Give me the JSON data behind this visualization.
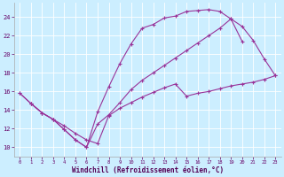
{
  "xlabel": "Windchill (Refroidissement éolien,°C)",
  "background_color": "#cceeff",
  "grid_color": "#ffffff",
  "line_color": "#993399",
  "xlim": [
    -0.5,
    23.5
  ],
  "ylim": [
    9.0,
    25.5
  ],
  "yticks": [
    10,
    12,
    14,
    16,
    18,
    20,
    22,
    24
  ],
  "xticks": [
    0,
    1,
    2,
    3,
    4,
    5,
    6,
    7,
    8,
    9,
    10,
    11,
    12,
    13,
    14,
    15,
    16,
    17,
    18,
    19,
    20,
    21,
    22,
    23
  ],
  "line1_x": [
    0,
    1,
    2,
    3,
    4,
    5,
    6,
    7,
    8,
    9,
    10,
    11,
    12,
    13,
    14,
    15,
    16,
    17,
    18,
    19,
    20
  ],
  "line1_y": [
    15.8,
    14.7,
    13.7,
    13.0,
    11.9,
    10.8,
    10.0,
    13.8,
    16.5,
    19.0,
    21.1,
    22.8,
    23.2,
    23.9,
    24.1,
    24.6,
    24.7,
    24.8,
    24.6,
    23.8,
    21.4
  ],
  "line2_x": [
    0,
    1,
    2,
    3,
    4,
    5,
    6,
    7,
    8,
    9,
    10,
    11,
    12,
    13,
    14,
    15,
    16,
    17,
    18,
    19,
    20,
    21,
    22,
    23
  ],
  "line2_y": [
    15.8,
    14.7,
    13.7,
    13.0,
    11.9,
    10.8,
    10.0,
    12.5,
    13.5,
    14.8,
    16.2,
    17.2,
    18.0,
    18.8,
    19.6,
    20.4,
    21.2,
    22.0,
    22.8,
    23.8,
    23.0,
    21.5,
    19.5,
    17.7
  ],
  "line3_x": [
    1,
    2,
    3,
    4,
    5,
    6,
    7,
    8,
    9,
    10,
    11,
    12,
    13,
    14,
    15,
    16,
    17,
    18,
    19,
    20,
    21,
    22,
    23
  ],
  "line3_y": [
    14.7,
    13.7,
    13.0,
    12.3,
    11.5,
    10.8,
    10.4,
    13.4,
    14.2,
    14.8,
    15.4,
    15.9,
    16.4,
    16.8,
    15.5,
    15.8,
    16.0,
    16.3,
    16.6,
    16.8,
    17.0,
    17.3,
    17.7
  ]
}
